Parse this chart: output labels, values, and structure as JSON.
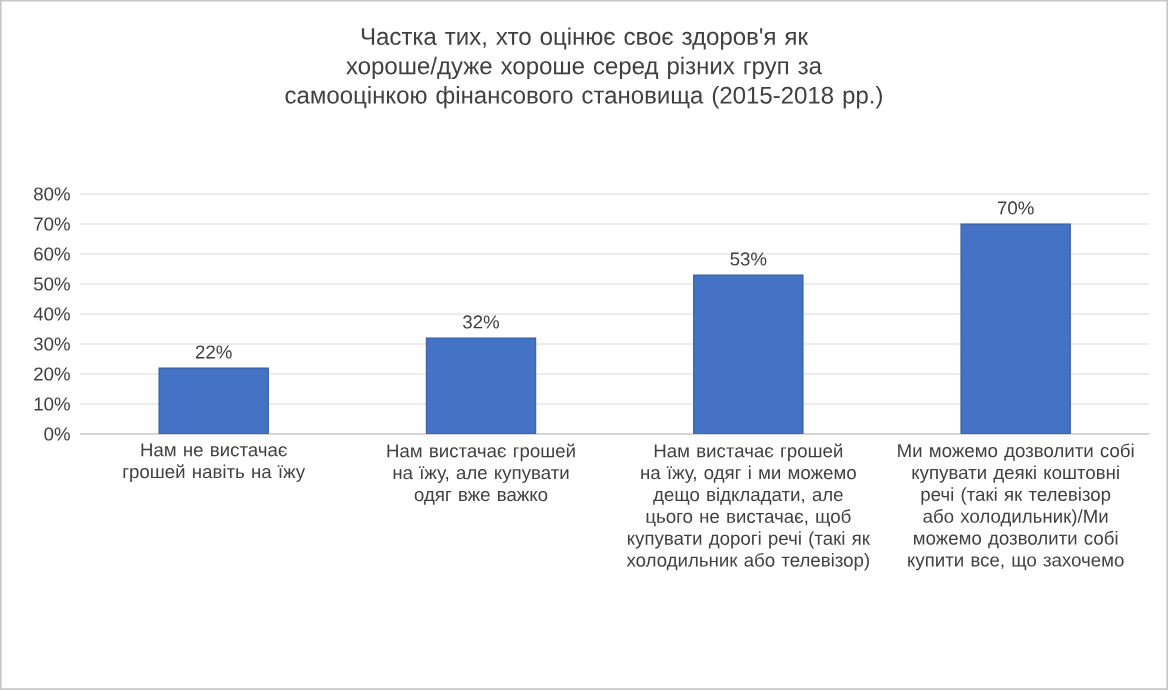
{
  "chart_data": {
    "type": "bar",
    "title": "Частка тих, хто оцінює своє здоров'я як хороше/дуже хороше серед різних груп за самооцінкою фінансового становища (2015-2018 рр.)",
    "categories": [
      "Нам не вистачає грошей навіть на їжу",
      "Нам вистачає грошей на їжу, але купувати одяг вже важко",
      "Нам вистачає грошей на їжу, одяг і ми можемо дещо відкладати, але цього не вистачає, щоб купувати дорогі речі (такі як холодильник або телевізор)",
      "Ми можемо дозволити собі купувати деякі коштовні речі (такі як телевізор або холодильник)/Ми можемо дозволити собі купити все, що захочемо"
    ],
    "values": [
      22,
      32,
      53,
      70
    ],
    "color": "#4472c4",
    "value_labels": [
      "22%",
      "32%",
      "53%",
      "70%"
    ],
    "ylim": [
      0,
      80
    ],
    "yticks": [
      {
        "value": 0,
        "label": "0%"
      },
      {
        "value": 10,
        "label": "10%"
      },
      {
        "value": 20,
        "label": "20%"
      },
      {
        "value": 30,
        "label": "30%"
      },
      {
        "value": 40,
        "label": "40%"
      },
      {
        "value": 50,
        "label": "50%"
      },
      {
        "value": 60,
        "label": "60%"
      },
      {
        "value": 70,
        "label": "70%"
      },
      {
        "value": 80,
        "label": "80%"
      }
    ],
    "grid": "y"
  }
}
